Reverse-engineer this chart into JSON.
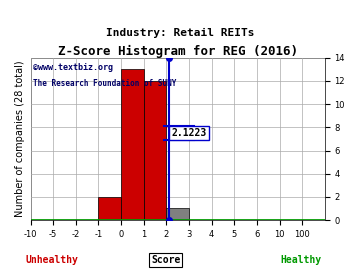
{
  "title": "Z-Score Histogram for REG (2016)",
  "subtitle": "Industry: Retail REITs",
  "watermark_line1": "©www.textbiz.org",
  "watermark_line2": "The Research Foundation of SUNY",
  "xlabel_score": "Score",
  "xlabel_left": "Unhealthy",
  "xlabel_right": "Healthy",
  "ylabel": "Number of companies (28 total)",
  "bar_labels": [
    "-10",
    "-5",
    "-2",
    "-1",
    "0",
    "1",
    "2",
    "3",
    "4",
    "5",
    "6",
    "10",
    "100"
  ],
  "bar_heights": [
    0,
    0,
    0,
    2,
    13,
    12,
    1,
    0,
    0,
    0,
    0,
    0
  ],
  "bar_colors": [
    "#cc0000",
    "#cc0000",
    "#cc0000",
    "#cc0000",
    "#cc0000",
    "#cc0000",
    "#808080",
    "#ffffff",
    "#ffffff",
    "#ffffff",
    "#ffffff",
    "#ffffff"
  ],
  "zscore_value": 2.1223,
  "zscore_label": "2.1223",
  "zscore_line_color": "#0000cc",
  "ylim": [
    0,
    14
  ],
  "background_color": "#ffffff",
  "grid_color": "#aaaaaa",
  "title_color": "#000000",
  "subtitle_color": "#000000",
  "unhealthy_color": "#cc0000",
  "healthy_color": "#009900",
  "score_label_color": "#000000",
  "watermark_color": "#000066",
  "yticks": [
    0,
    2,
    4,
    6,
    8,
    10,
    12,
    14
  ],
  "font_size_title": 9,
  "font_size_subtitle": 8,
  "font_size_axis_label": 7,
  "font_size_ticks": 6,
  "font_size_zscore": 7,
  "font_size_watermark1": 6,
  "font_size_watermark2": 5.5
}
